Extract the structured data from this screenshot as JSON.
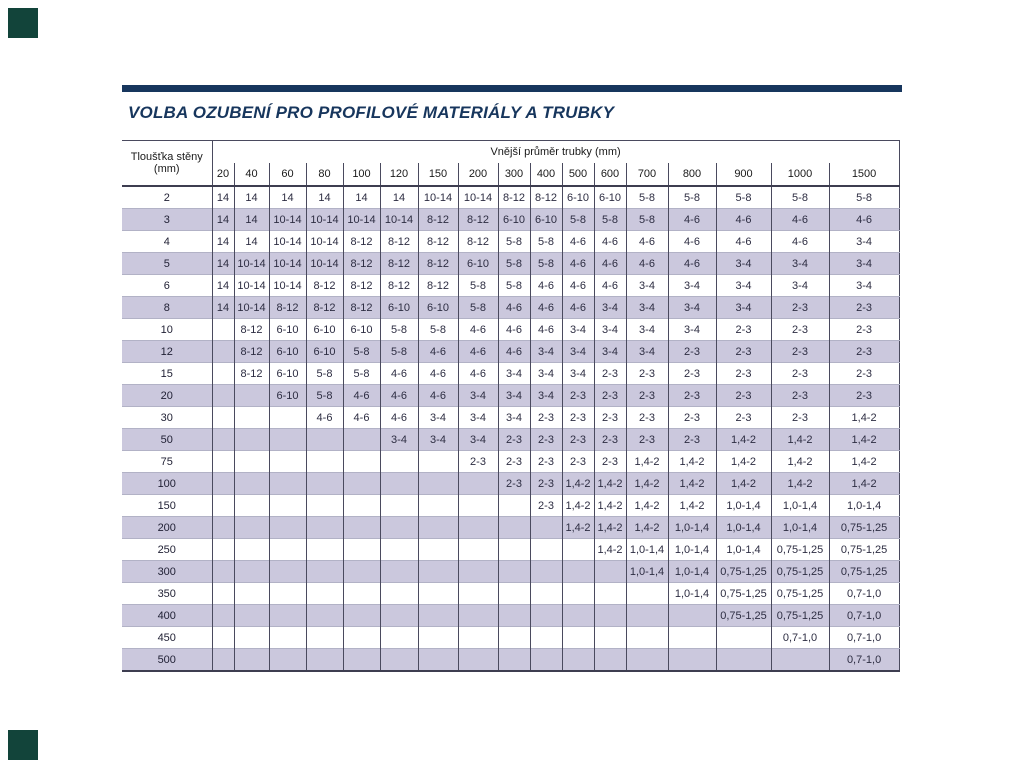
{
  "page": {
    "title": "VOLBA OZUBENÍ PRO PROFILOVÉ MATERIÁLY A TRUBKY"
  },
  "colors": {
    "accent_navy": "#17365d",
    "corner_green": "#12443a",
    "stripe_lavender": "#cbc8dd"
  },
  "table": {
    "corner_header_line1": "Tloušťka stěny",
    "corner_header_line2": "(mm)",
    "span_header": "Vnější průměr trubky (mm)",
    "columns": [
      "20",
      "40",
      "60",
      "80",
      "100",
      "120",
      "150",
      "200",
      "300",
      "400",
      "500",
      "600",
      "700",
      "800",
      "900",
      "1000",
      "1500"
    ],
    "rows": [
      {
        "label": "2",
        "values": [
          "14",
          "14",
          "14",
          "14",
          "14",
          "14",
          "10-14",
          "10-14",
          "8-12",
          "8-12",
          "6-10",
          "6-10",
          "5-8",
          "5-8",
          "5-8",
          "5-8",
          "5-8"
        ]
      },
      {
        "label": "3",
        "values": [
          "14",
          "14",
          "10-14",
          "10-14",
          "10-14",
          "10-14",
          "8-12",
          "8-12",
          "6-10",
          "6-10",
          "5-8",
          "5-8",
          "5-8",
          "4-6",
          "4-6",
          "4-6",
          "4-6"
        ]
      },
      {
        "label": "4",
        "values": [
          "14",
          "14",
          "10-14",
          "10-14",
          "8-12",
          "8-12",
          "8-12",
          "8-12",
          "5-8",
          "5-8",
          "4-6",
          "4-6",
          "4-6",
          "4-6",
          "4-6",
          "4-6",
          "3-4"
        ]
      },
      {
        "label": "5",
        "values": [
          "14",
          "10-14",
          "10-14",
          "10-14",
          "8-12",
          "8-12",
          "8-12",
          "6-10",
          "5-8",
          "5-8",
          "4-6",
          "4-6",
          "4-6",
          "4-6",
          "3-4",
          "3-4",
          "3-4"
        ]
      },
      {
        "label": "6",
        "values": [
          "14",
          "10-14",
          "10-14",
          "8-12",
          "8-12",
          "8-12",
          "8-12",
          "5-8",
          "5-8",
          "4-6",
          "4-6",
          "4-6",
          "3-4",
          "3-4",
          "3-4",
          "3-4",
          "3-4"
        ]
      },
      {
        "label": "8",
        "values": [
          "14",
          "10-14",
          "8-12",
          "8-12",
          "8-12",
          "6-10",
          "6-10",
          "5-8",
          "4-6",
          "4-6",
          "4-6",
          "3-4",
          "3-4",
          "3-4",
          "3-4",
          "2-3",
          "2-3"
        ]
      },
      {
        "label": "10",
        "values": [
          "",
          "8-12",
          "6-10",
          "6-10",
          "6-10",
          "5-8",
          "5-8",
          "4-6",
          "4-6",
          "4-6",
          "3-4",
          "3-4",
          "3-4",
          "3-4",
          "2-3",
          "2-3",
          "2-3"
        ]
      },
      {
        "label": "12",
        "values": [
          "",
          "8-12",
          "6-10",
          "6-10",
          "5-8",
          "5-8",
          "4-6",
          "4-6",
          "4-6",
          "3-4",
          "3-4",
          "3-4",
          "3-4",
          "2-3",
          "2-3",
          "2-3",
          "2-3"
        ]
      },
      {
        "label": "15",
        "values": [
          "",
          "8-12",
          "6-10",
          "5-8",
          "5-8",
          "4-6",
          "4-6",
          "4-6",
          "3-4",
          "3-4",
          "3-4",
          "2-3",
          "2-3",
          "2-3",
          "2-3",
          "2-3",
          "2-3"
        ]
      },
      {
        "label": "20",
        "values": [
          "",
          "",
          "6-10",
          "5-8",
          "4-6",
          "4-6",
          "4-6",
          "3-4",
          "3-4",
          "3-4",
          "2-3",
          "2-3",
          "2-3",
          "2-3",
          "2-3",
          "2-3",
          "2-3"
        ]
      },
      {
        "label": "30",
        "values": [
          "",
          "",
          "",
          "4-6",
          "4-6",
          "4-6",
          "3-4",
          "3-4",
          "3-4",
          "2-3",
          "2-3",
          "2-3",
          "2-3",
          "2-3",
          "2-3",
          "2-3",
          "1,4-2"
        ]
      },
      {
        "label": "50",
        "values": [
          "",
          "",
          "",
          "",
          "",
          "3-4",
          "3-4",
          "3-4",
          "2-3",
          "2-3",
          "2-3",
          "2-3",
          "2-3",
          "2-3",
          "1,4-2",
          "1,4-2",
          "1,4-2"
        ]
      },
      {
        "label": "75",
        "values": [
          "",
          "",
          "",
          "",
          "",
          "",
          "",
          "2-3",
          "2-3",
          "2-3",
          "2-3",
          "2-3",
          "1,4-2",
          "1,4-2",
          "1,4-2",
          "1,4-2",
          "1,4-2"
        ]
      },
      {
        "label": "100",
        "values": [
          "",
          "",
          "",
          "",
          "",
          "",
          "",
          "",
          "2-3",
          "2-3",
          "1,4-2",
          "1,4-2",
          "1,4-2",
          "1,4-2",
          "1,4-2",
          "1,4-2",
          "1,4-2"
        ]
      },
      {
        "label": "150",
        "values": [
          "",
          "",
          "",
          "",
          "",
          "",
          "",
          "",
          "",
          "2-3",
          "1,4-2",
          "1,4-2",
          "1,4-2",
          "1,4-2",
          "1,0-1,4",
          "1,0-1,4",
          "1,0-1,4"
        ]
      },
      {
        "label": "200",
        "values": [
          "",
          "",
          "",
          "",
          "",
          "",
          "",
          "",
          "",
          "",
          "1,4-2",
          "1,4-2",
          "1,4-2",
          "1,0-1,4",
          "1,0-1,4",
          "1,0-1,4",
          "0,75-1,25"
        ]
      },
      {
        "label": "250",
        "values": [
          "",
          "",
          "",
          "",
          "",
          "",
          "",
          "",
          "",
          "",
          "",
          "1,4-2",
          "1,0-1,4",
          "1,0-1,4",
          "1,0-1,4",
          "0,75-1,25",
          "0,75-1,25"
        ]
      },
      {
        "label": "300",
        "values": [
          "",
          "",
          "",
          "",
          "",
          "",
          "",
          "",
          "",
          "",
          "",
          "",
          "1,0-1,4",
          "1,0-1,4",
          "0,75-1,25",
          "0,75-1,25",
          "0,75-1,25"
        ]
      },
      {
        "label": "350",
        "values": [
          "",
          "",
          "",
          "",
          "",
          "",
          "",
          "",
          "",
          "",
          "",
          "",
          "",
          "1,0-1,4",
          "0,75-1,25",
          "0,75-1,25",
          "0,7-1,0"
        ]
      },
      {
        "label": "400",
        "values": [
          "",
          "",
          "",
          "",
          "",
          "",
          "",
          "",
          "",
          "",
          "",
          "",
          "",
          "",
          "0,75-1,25",
          "0,75-1,25",
          "0,7-1,0"
        ]
      },
      {
        "label": "450",
        "values": [
          "",
          "",
          "",
          "",
          "",
          "",
          "",
          "",
          "",
          "",
          "",
          "",
          "",
          "",
          "",
          "0,7-1,0",
          "0,7-1,0"
        ]
      },
      {
        "label": "500",
        "values": [
          "",
          "",
          "",
          "",
          "",
          "",
          "",
          "",
          "",
          "",
          "",
          "",
          "",
          "",
          "",
          "",
          "0,7-1,0"
        ]
      }
    ]
  }
}
